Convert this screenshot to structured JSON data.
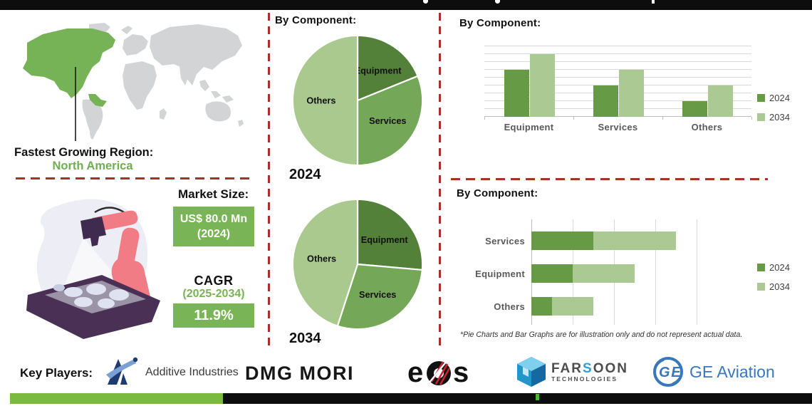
{
  "headings": {
    "by_component": "By Component:"
  },
  "region": {
    "label": "Fastest Growing Region:",
    "value": "North America"
  },
  "market_size": {
    "label": "Market Size:",
    "value_line1": "US$ 80.0 Mn",
    "value_line2": "(2024)",
    "cagr_label": "CAGR",
    "cagr_period": "(2025-2034)",
    "cagr_value": "11.9%"
  },
  "map": {
    "highlight_region": "North America",
    "highlight_color": "#76b357",
    "land_color": "#d3d4d6"
  },
  "colors": {
    "pie_dark": "#538139",
    "pie_mid": "#74a757",
    "pie_light": "#a9c98f",
    "bar_2024": "#669a44",
    "bar_2034": "#abc993",
    "box_green": "#79b456",
    "divider_red": "#a5332b",
    "bottombar_green": "#79ba3f"
  },
  "chart_data": [
    {
      "type": "pie",
      "title": "By Component:",
      "label": "2024",
      "slices": [
        {
          "name": "Equipment",
          "angle_deg": 68,
          "percent_est": 19,
          "color": "#538139"
        },
        {
          "name": "Services",
          "angle_deg": 112,
          "percent_est": 31,
          "color": "#74a757"
        },
        {
          "name": "Others",
          "angle_deg": 180,
          "percent_est": 50,
          "color": "#a9c98f"
        }
      ]
    },
    {
      "type": "pie",
      "title": "By Component:",
      "label": "2034",
      "slices": [
        {
          "name": "Equipment",
          "angle_deg": 95,
          "percent_est": 26,
          "color": "#538139"
        },
        {
          "name": "Services",
          "angle_deg": 103,
          "percent_est": 29,
          "color": "#74a757"
        },
        {
          "name": "Others",
          "angle_deg": 162,
          "percent_est": 45,
          "color": "#a9c98f"
        }
      ]
    },
    {
      "type": "bar",
      "title": "By Component:",
      "categories": [
        "Equipment",
        "Services",
        "Others"
      ],
      "series": [
        {
          "name": "2024",
          "color": "#669a44",
          "values": [
            6,
            4,
            2
          ]
        },
        {
          "name": "2034",
          "color": "#abc993",
          "values": [
            8,
            6,
            4
          ]
        }
      ],
      "ylim": [
        0,
        9
      ],
      "gridlines": true,
      "legend_position": "right",
      "note": "unitless illustrative values"
    },
    {
      "type": "area",
      "subtype": "stacked-horizontal-bar",
      "title": "By Component:",
      "categories": [
        "Services",
        "Equipment",
        "Others"
      ],
      "series": [
        {
          "name": "2024",
          "color": "#669a44",
          "values": [
            1.5,
            1.0,
            0.5
          ]
        },
        {
          "name": "2034",
          "color": "#abc993",
          "values": [
            2.0,
            1.5,
            1.0
          ]
        }
      ],
      "xlim": [
        0,
        4
      ],
      "gridlines": true,
      "legend_position": "right",
      "note": "unitless illustrative values"
    }
  ],
  "footnote": "*Pie Charts and Bar Graphs are for illustration only and do not represent actual data.",
  "key_players": {
    "label": "Key Players:",
    "companies": [
      {
        "name": "Additive Industries"
      },
      {
        "name": "DMG MORI"
      },
      {
        "name": "eos"
      },
      {
        "name_top": "FARSOON",
        "name_sub": "TECHNOLOGIES"
      },
      {
        "monogram": "GE",
        "name": "GE Aviation"
      }
    ]
  }
}
